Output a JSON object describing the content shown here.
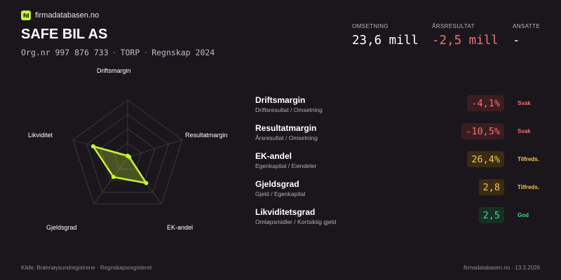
{
  "brand": {
    "logo_text": "fd",
    "name": "firmadatabasen.no",
    "accent": "#c6f432"
  },
  "company": {
    "name": "SAFE BIL AS",
    "org_nr": "Org.nr 997 876 733",
    "city": "TORP",
    "report": "Regnskap 2024"
  },
  "stats": [
    {
      "label": "OMSETNING",
      "value": "23,6 mill",
      "negative": false
    },
    {
      "label": "ÅRSRESULTAT",
      "value": "-2,5 mill",
      "negative": true
    },
    {
      "label": "ANSATTE",
      "value": "-",
      "negative": false
    }
  ],
  "radar": {
    "axes": [
      "Driftsmargin",
      "Resultatmargin",
      "EK-andel",
      "Gjeldsgrad",
      "Likviditet"
    ],
    "scores": [
      0.03,
      0.03,
      0.55,
      0.42,
      0.63
    ],
    "colors": {
      "fill": "#c6f432",
      "grid": "#3a363d"
    }
  },
  "metrics": [
    {
      "name": "Driftsmargin",
      "formula": "Driftsresultat / Omsetning",
      "value": "-4,1%",
      "status": "Svak",
      "level": "svak"
    },
    {
      "name": "Resultatmargin",
      "formula": "Årsresultat / Omsetning",
      "value": "-10,5%",
      "status": "Svak",
      "level": "svak"
    },
    {
      "name": "EK-andel",
      "formula": "Egenkapital / Eiendeler",
      "value": "26,4%",
      "status": "Tilfreds.",
      "level": "tilf"
    },
    {
      "name": "Gjeldsgrad",
      "formula": "Gjeld / Egenkapital",
      "value": "2,8",
      "status": "Tilfreds.",
      "level": "tilf"
    },
    {
      "name": "Likviditetsgrad",
      "formula": "Omløpsmidler / Kortsiktig gjeld",
      "value": "2,5",
      "status": "God",
      "level": "god"
    }
  ],
  "footer": {
    "source": "Kilde: Brønnøysundregistrene · Regnskapsregisteret",
    "site_date": "firmadatabasen.no · 13.3.2026"
  }
}
